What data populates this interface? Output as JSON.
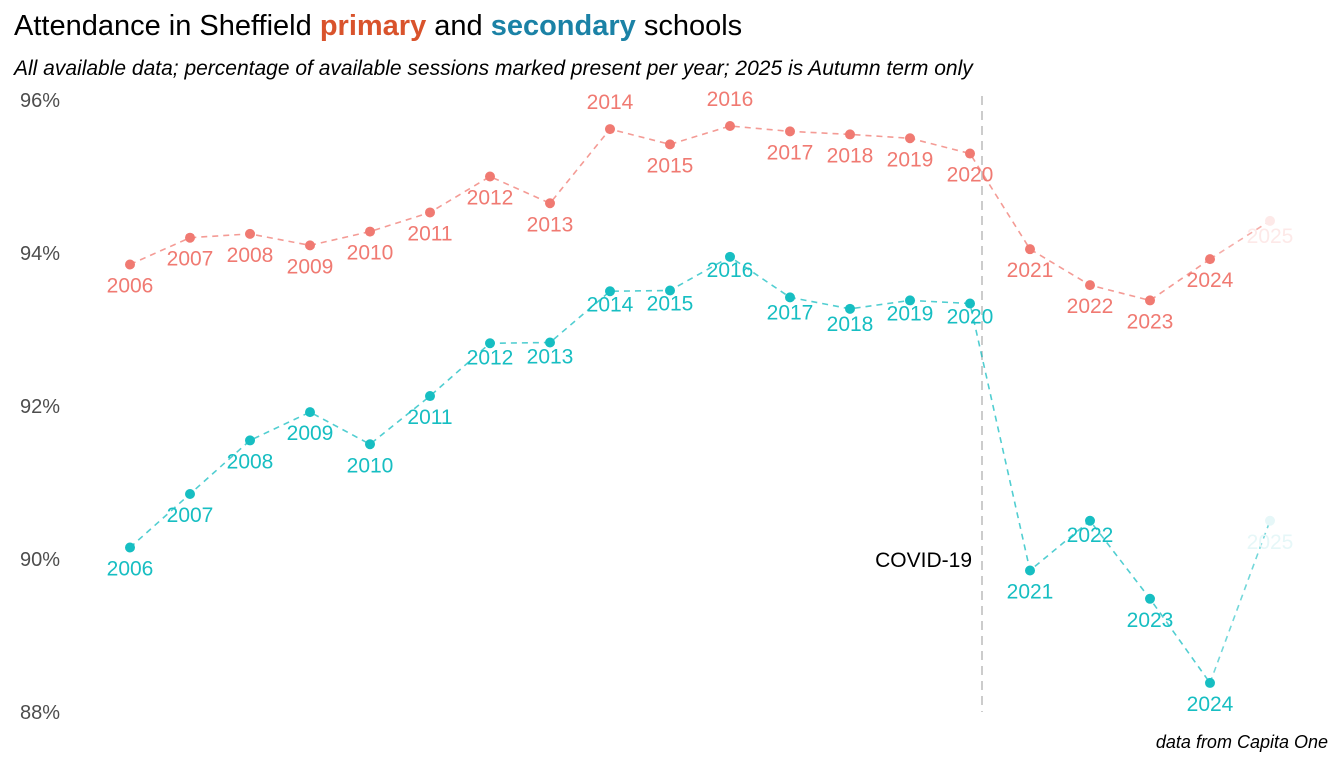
{
  "title": {
    "prefix": "Attendance in Sheffield ",
    "primary_word": "primary",
    "middle": " and ",
    "secondary_word": "secondary",
    "suffix": " schools"
  },
  "subtitle": "All available data; percentage of available sessions marked present per year; 2025 is Autumn term only",
  "caption": "data from Capita One",
  "colors": {
    "primary_title": "#d9532c",
    "secondary_title": "#1b82a6",
    "primary_series": "#f07a72",
    "secondary_series": "#17bec2",
    "primary_faded": "#fde9e8",
    "secondary_faded": "#e6f7f8",
    "covid_line": "#cccccc",
    "axis_text": "#4d4d4d"
  },
  "chart_data": {
    "type": "line",
    "x_range": [
      2006,
      2025
    ],
    "ylim": [
      88,
      96
    ],
    "y_ticks": [
      {
        "value": 88,
        "label": "88%"
      },
      {
        "value": 90,
        "label": "90%"
      },
      {
        "value": 92,
        "label": "92%"
      },
      {
        "value": 94,
        "label": "94%"
      },
      {
        "value": 96,
        "label": "96%"
      }
    ],
    "grid": false,
    "legend": "none (series named in title)",
    "annotation": {
      "x": 2020.2,
      "y": 90,
      "label": "COVID-19"
    },
    "series": [
      {
        "name": "primary",
        "x": [
          2006,
          2007,
          2008,
          2009,
          2010,
          2011,
          2012,
          2013,
          2014,
          2015,
          2016,
          2017,
          2018,
          2019,
          2020,
          2021,
          2022,
          2023,
          2024,
          2025
        ],
        "y": [
          93.85,
          94.2,
          94.25,
          94.1,
          94.28,
          94.53,
          95.0,
          94.65,
          95.62,
          95.42,
          95.66,
          95.59,
          95.55,
          95.5,
          95.3,
          94.05,
          93.58,
          93.38,
          93.92,
          94.42
        ]
      },
      {
        "name": "secondary",
        "x": [
          2006,
          2007,
          2008,
          2009,
          2010,
          2011,
          2012,
          2013,
          2014,
          2015,
          2016,
          2017,
          2018,
          2019,
          2020,
          2021,
          2022,
          2023,
          2024,
          2025
        ],
        "y": [
          90.15,
          90.85,
          91.55,
          91.92,
          91.5,
          92.13,
          92.82,
          92.83,
          93.5,
          93.51,
          93.95,
          93.42,
          93.27,
          93.38,
          93.34,
          89.85,
          90.5,
          89.48,
          88.38,
          90.5
        ]
      }
    ]
  }
}
